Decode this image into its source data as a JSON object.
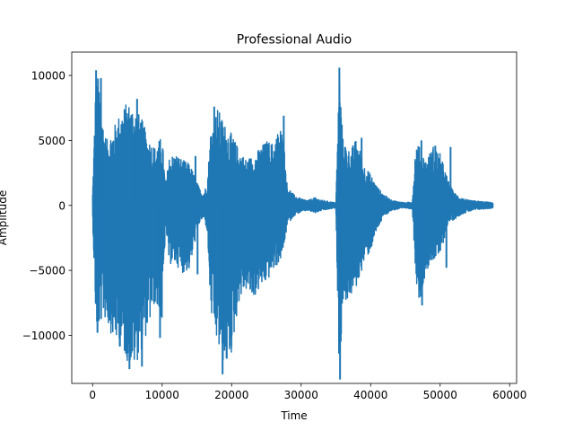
{
  "chart_data": {
    "type": "line",
    "title": "Professional Audio",
    "xlabel": "Time",
    "ylabel": "Amplitude",
    "xlim": [
      -3000,
      61000
    ],
    "ylim": [
      -13700,
      11800
    ],
    "xticks": [
      0,
      10000,
      20000,
      30000,
      40000,
      50000,
      60000
    ],
    "xtick_labels": [
      "0",
      "10000",
      "20000",
      "30000",
      "40000",
      "50000",
      "60000"
    ],
    "yticks": [
      -10000,
      -5000,
      0,
      5000,
      10000
    ],
    "ytick_labels": [
      "−10000",
      "−5000",
      "0",
      "5000",
      "10000"
    ],
    "grid": false,
    "series": [
      {
        "color": "#1f77b4",
        "envelope": {
          "x": [
            0,
            500,
            1000,
            1500,
            2000,
            3000,
            4000,
            5000,
            6000,
            7000,
            8000,
            9000,
            10000,
            10500,
            11000,
            12000,
            13000,
            14000,
            15000,
            15500,
            16000,
            16500,
            17000,
            18000,
            19000,
            20000,
            21000,
            22000,
            23000,
            24000,
            25000,
            26000,
            27000,
            27500,
            28000,
            29000,
            30000,
            31000,
            32000,
            33000,
            34000,
            35000,
            35500,
            36000,
            37000,
            38000,
            39000,
            40000,
            41000,
            42000,
            43000,
            44000,
            45000,
            46000,
            46500,
            47000,
            48000,
            49000,
            50000,
            51000,
            51500,
            52000,
            53000,
            54000,
            55000,
            56000,
            57000,
            57600
          ],
          "upper": [
            1000,
            10400,
            9500,
            6500,
            5000,
            6000,
            7200,
            8000,
            7600,
            6800,
            5200,
            4500,
            5400,
            1500,
            3800,
            4000,
            3500,
            3200,
            1800,
            1200,
            1000,
            1800,
            6000,
            7500,
            6300,
            5500,
            4400,
            3600,
            3800,
            4400,
            5000,
            4800,
            6200,
            5000,
            1500,
            800,
            500,
            400,
            600,
            400,
            300,
            200,
            10600,
            5200,
            4200,
            5200,
            3200,
            2400,
            1400,
            800,
            400,
            300,
            200,
            300,
            5000,
            4500,
            3500,
            4600,
            4000,
            2200,
            1500,
            1000,
            600,
            400,
            350,
            300,
            250,
            200
          ],
          "lower": [
            -1000,
            -9600,
            -9500,
            -8500,
            -9000,
            -10300,
            -11000,
            -12000,
            -12500,
            -11200,
            -9500,
            -7500,
            -9500,
            -1500,
            -4500,
            -4600,
            -5200,
            -5000,
            -2000,
            -1200,
            -1000,
            -2000,
            -8500,
            -11000,
            -12500,
            -11500,
            -7500,
            -6500,
            -7300,
            -6500,
            -6000,
            -5000,
            -4300,
            -3500,
            -1500,
            -800,
            -500,
            -400,
            -600,
            -400,
            -300,
            -200,
            -13400,
            -7500,
            -7200,
            -6300,
            -4500,
            -3500,
            -1800,
            -800,
            -400,
            -300,
            -200,
            -300,
            -5500,
            -7500,
            -5000,
            -4200,
            -4000,
            -1600,
            -1200,
            -1100,
            -700,
            -500,
            -350,
            -300,
            -250,
            -200
          ]
        },
        "spikes": [
          {
            "x": 500,
            "y": 10400
          },
          {
            "x": 700,
            "y": -9800
          },
          {
            "x": 1200,
            "y": 9800
          },
          {
            "x": 5300,
            "y": -12600
          },
          {
            "x": 6400,
            "y": 8200
          },
          {
            "x": 7100,
            "y": -12400
          },
          {
            "x": 9700,
            "y": -10200
          },
          {
            "x": 14800,
            "y": 3800
          },
          {
            "x": 15100,
            "y": -5300
          },
          {
            "x": 17500,
            "y": 7600
          },
          {
            "x": 18700,
            "y": -13000
          },
          {
            "x": 19300,
            "y": -11800
          },
          {
            "x": 27500,
            "y": 6900
          },
          {
            "x": 35500,
            "y": 10600
          },
          {
            "x": 35600,
            "y": -13400
          },
          {
            "x": 38700,
            "y": 5200
          },
          {
            "x": 47300,
            "y": 5000
          },
          {
            "x": 47400,
            "y": -7700
          },
          {
            "x": 49300,
            "y": 4600
          },
          {
            "x": 50900,
            "y": -4800
          },
          {
            "x": 51500,
            "y": 4500
          }
        ]
      }
    ]
  }
}
